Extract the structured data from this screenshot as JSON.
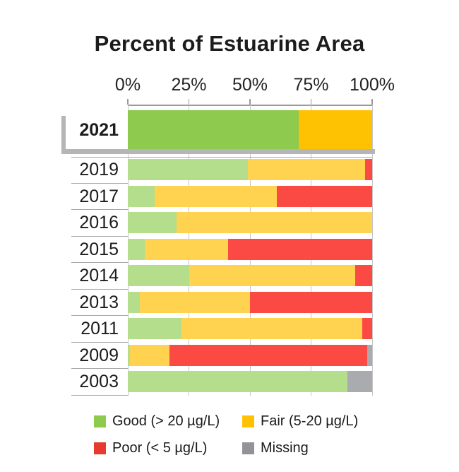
{
  "title": "Percent of Estuarine Area",
  "axis": {
    "tick_labels": [
      "0%",
      "25%",
      "50%",
      "75%",
      "100%"
    ]
  },
  "chart_data": {
    "type": "bar",
    "stacked": true,
    "orientation": "horizontal",
    "title": "Percent of Estuarine Area",
    "x_tick_labels": [
      "0%",
      "25%",
      "50%",
      "75%",
      "100%"
    ],
    "xlim": [
      0,
      100
    ],
    "grid": true,
    "categories": [
      "2021",
      "2019",
      "2017",
      "2016",
      "2015",
      "2014",
      "2013",
      "2011",
      "2009",
      "2003"
    ],
    "highlighted_category": "2021",
    "series": [
      {
        "name": "Good (> 20 µg/L)",
        "values": [
          70,
          49,
          11,
          20,
          7,
          25,
          5,
          22,
          1,
          90
        ]
      },
      {
        "name": "Fair (5-20 µg/L)",
        "values": [
          30,
          48,
          50,
          80,
          34,
          68,
          45,
          74,
          16,
          0
        ]
      },
      {
        "name": "Poor (< 5 µg/L)",
        "values": [
          0,
          3,
          39,
          0,
          59,
          7,
          50,
          4,
          81,
          0
        ]
      },
      {
        "name": "Missing",
        "values": [
          0,
          0,
          0,
          0,
          0,
          0,
          0,
          0,
          2,
          10
        ]
      }
    ],
    "colors": {
      "good_highlight": "#8DCA4E",
      "good_muted": "#B4DE8C",
      "fair_highlight": "#FFC203",
      "fair_muted": "#FFD24F",
      "poor": "#FB4944",
      "missing": "#A9ABAE"
    },
    "legend_position": "bottom"
  },
  "legend": {
    "items": [
      {
        "label": "Good (> 20 µg/L)",
        "color": "#8DCA4E"
      },
      {
        "label": "Fair (5-20 µg/L)",
        "color": "#FFC203"
      },
      {
        "label": "Poor (< 5 µg/L)",
        "color": "#E63A30"
      },
      {
        "label": "Missing",
        "color": "#919396"
      }
    ]
  }
}
